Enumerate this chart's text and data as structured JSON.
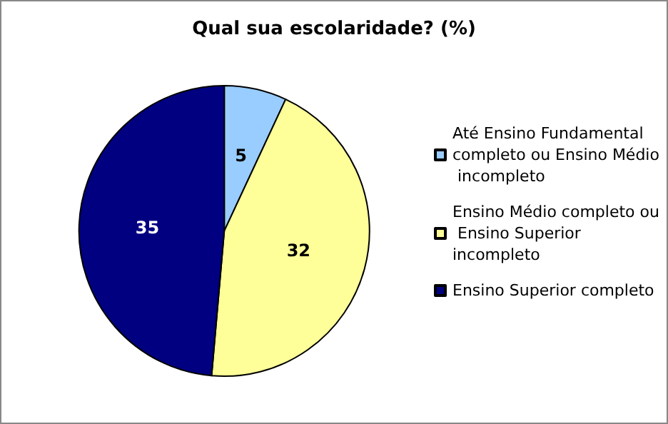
{
  "chart_data": {
    "type": "pie",
    "title": "Qual sua escolaridade? (%)",
    "categories": [
      "Até Ensino Fundamental completo ou Ensino Médio incompleto",
      "Ensino Médio completo ou Ensino Superior incompleto",
      "Ensino Superior completo"
    ],
    "values": [
      5,
      32,
      35
    ],
    "colors": [
      "#99ccff",
      "#ffff99",
      "#000080"
    ],
    "data_labels": true,
    "legend": "right"
  }
}
